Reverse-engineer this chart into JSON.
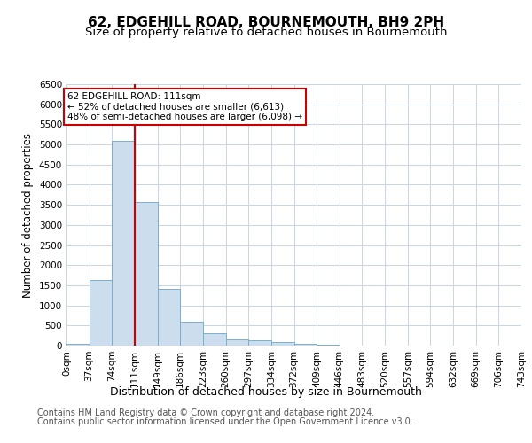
{
  "title": "62, EDGEHILL ROAD, BOURNEMOUTH, BH9 2PH",
  "subtitle": "Size of property relative to detached houses in Bournemouth",
  "xlabel": "Distribution of detached houses by size in Bournemouth",
  "ylabel": "Number of detached properties",
  "bar_values": [
    50,
    1640,
    5080,
    3580,
    1400,
    600,
    300,
    160,
    130,
    80,
    50,
    30,
    10,
    5,
    0,
    0,
    0,
    0,
    0,
    0
  ],
  "bar_labels": [
    "0sqm",
    "37sqm",
    "74sqm",
    "111sqm",
    "149sqm",
    "186sqm",
    "223sqm",
    "260sqm",
    "297sqm",
    "334sqm",
    "372sqm",
    "409sqm",
    "446sqm",
    "483sqm",
    "520sqm",
    "557sqm",
    "594sqm",
    "632sqm",
    "669sqm",
    "706sqm",
    "743sqm"
  ],
  "bar_color": "#ccdded",
  "bar_edge_color": "#7ab0cc",
  "vline_color": "#cc0000",
  "annotation_text": "62 EDGEHILL ROAD: 111sqm\n← 52% of detached houses are smaller (6,613)\n48% of semi-detached houses are larger (6,098) →",
  "annotation_box_facecolor": "#ffffff",
  "annotation_box_edgecolor": "#cc0000",
  "ylim_max": 6500,
  "yticks": [
    0,
    500,
    1000,
    1500,
    2000,
    2500,
    3000,
    3500,
    4000,
    4500,
    5000,
    5500,
    6000,
    6500
  ],
  "grid_color": "#c8d5e3",
  "title_fontsize": 11,
  "subtitle_fontsize": 9.5,
  "ylabel_fontsize": 8.5,
  "xlabel_fontsize": 9,
  "tick_fontsize": 7.5,
  "footer_fontsize": 7,
  "footer_line1": "Contains HM Land Registry data © Crown copyright and database right 2024.",
  "footer_line2": "Contains public sector information licensed under the Open Government Licence v3.0.",
  "bg_color": "#ffffff"
}
